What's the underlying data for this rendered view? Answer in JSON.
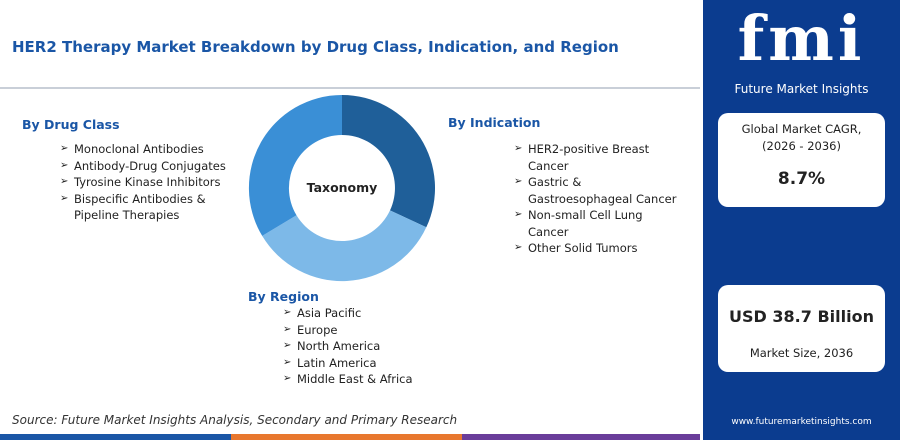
{
  "header": {
    "title": "HER2 Therapy Market Breakdown by Drug Class, Indication, and Region"
  },
  "center_label": "Taxonomy",
  "sections": {
    "drug_class": {
      "title": "By Drug Class",
      "items": [
        "Monoclonal Antibodies",
        "Antibody-Drug Conjugates",
        "Tyrosine Kinase Inhibitors",
        "Bispecific Antibodies & Pipeline Therapies"
      ]
    },
    "indication": {
      "title": "By Indication",
      "items": [
        "HER2-positive Breast Cancer",
        "Gastric & Gastroesophageal Cancer",
        "Non-small Cell Lung Cancer",
        "Other Solid Tumors"
      ]
    },
    "region": {
      "title": "By Region",
      "items": [
        "Asia Pacific",
        "Europe",
        "North America",
        "Latin America",
        "Middle East & Africa"
      ]
    }
  },
  "source": "Source: Future Market Insights Analysis, Secondary and Primary Research",
  "sidebar": {
    "logo": "fmi",
    "brand": "Future Market Insights",
    "cagr_label": "Global Market CAGR, (2026 - 2036)",
    "cagr_value": "8.7%",
    "size_value": "USD 38.7 Billion",
    "size_label": "Market Size, 2036",
    "url": "www.futuremarketinsights.com"
  }
}
